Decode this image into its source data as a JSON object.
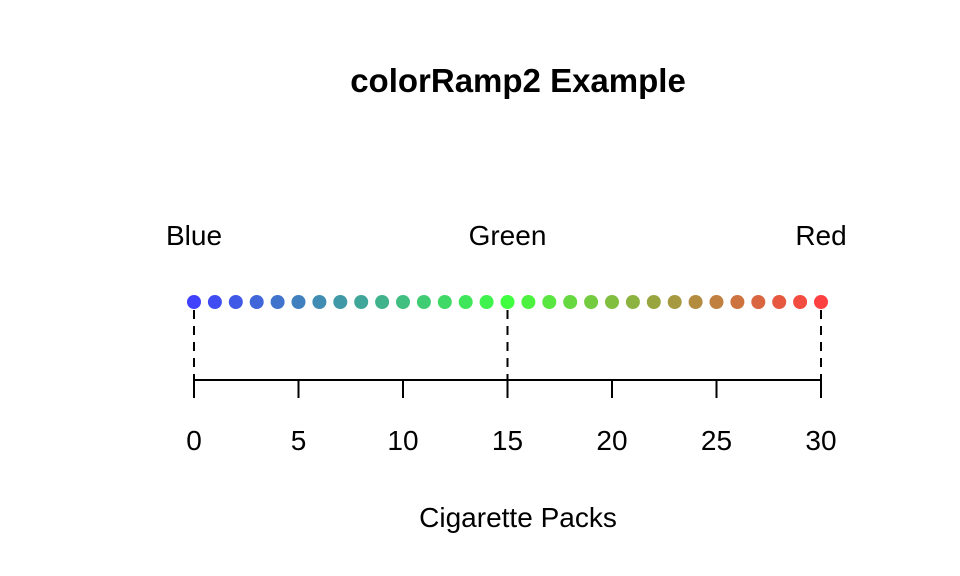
{
  "chart_data": {
    "type": "scatter",
    "title": "colorRamp2 Example",
    "xlabel": "Cigarette Packs",
    "ylabel": "",
    "xlim": [
      0,
      30
    ],
    "x_ticks": [
      "0",
      "5",
      "10",
      "15",
      "20",
      "25",
      "30"
    ],
    "grid": false,
    "color_anchors": [
      {
        "label": "Blue",
        "value": 0,
        "color": "#0000FF"
      },
      {
        "label": "Green",
        "value": 15,
        "color": "#00FF00"
      },
      {
        "label": "Red",
        "value": 30,
        "color": "#FF0000"
      }
    ],
    "points": {
      "x": [
        0,
        1,
        2,
        3,
        4,
        5,
        6,
        7,
        8,
        9,
        10,
        11,
        12,
        13,
        14,
        15,
        16,
        17,
        18,
        19,
        20,
        21,
        22,
        23,
        24,
        25,
        26,
        27,
        28,
        29,
        30
      ],
      "y": [
        0,
        0,
        0,
        0,
        0,
        0,
        0,
        0,
        0,
        0,
        0,
        0,
        0,
        0,
        0,
        0,
        0,
        0,
        0,
        0,
        0,
        0,
        0,
        0,
        0,
        0,
        0,
        0,
        0,
        0,
        0
      ]
    }
  }
}
